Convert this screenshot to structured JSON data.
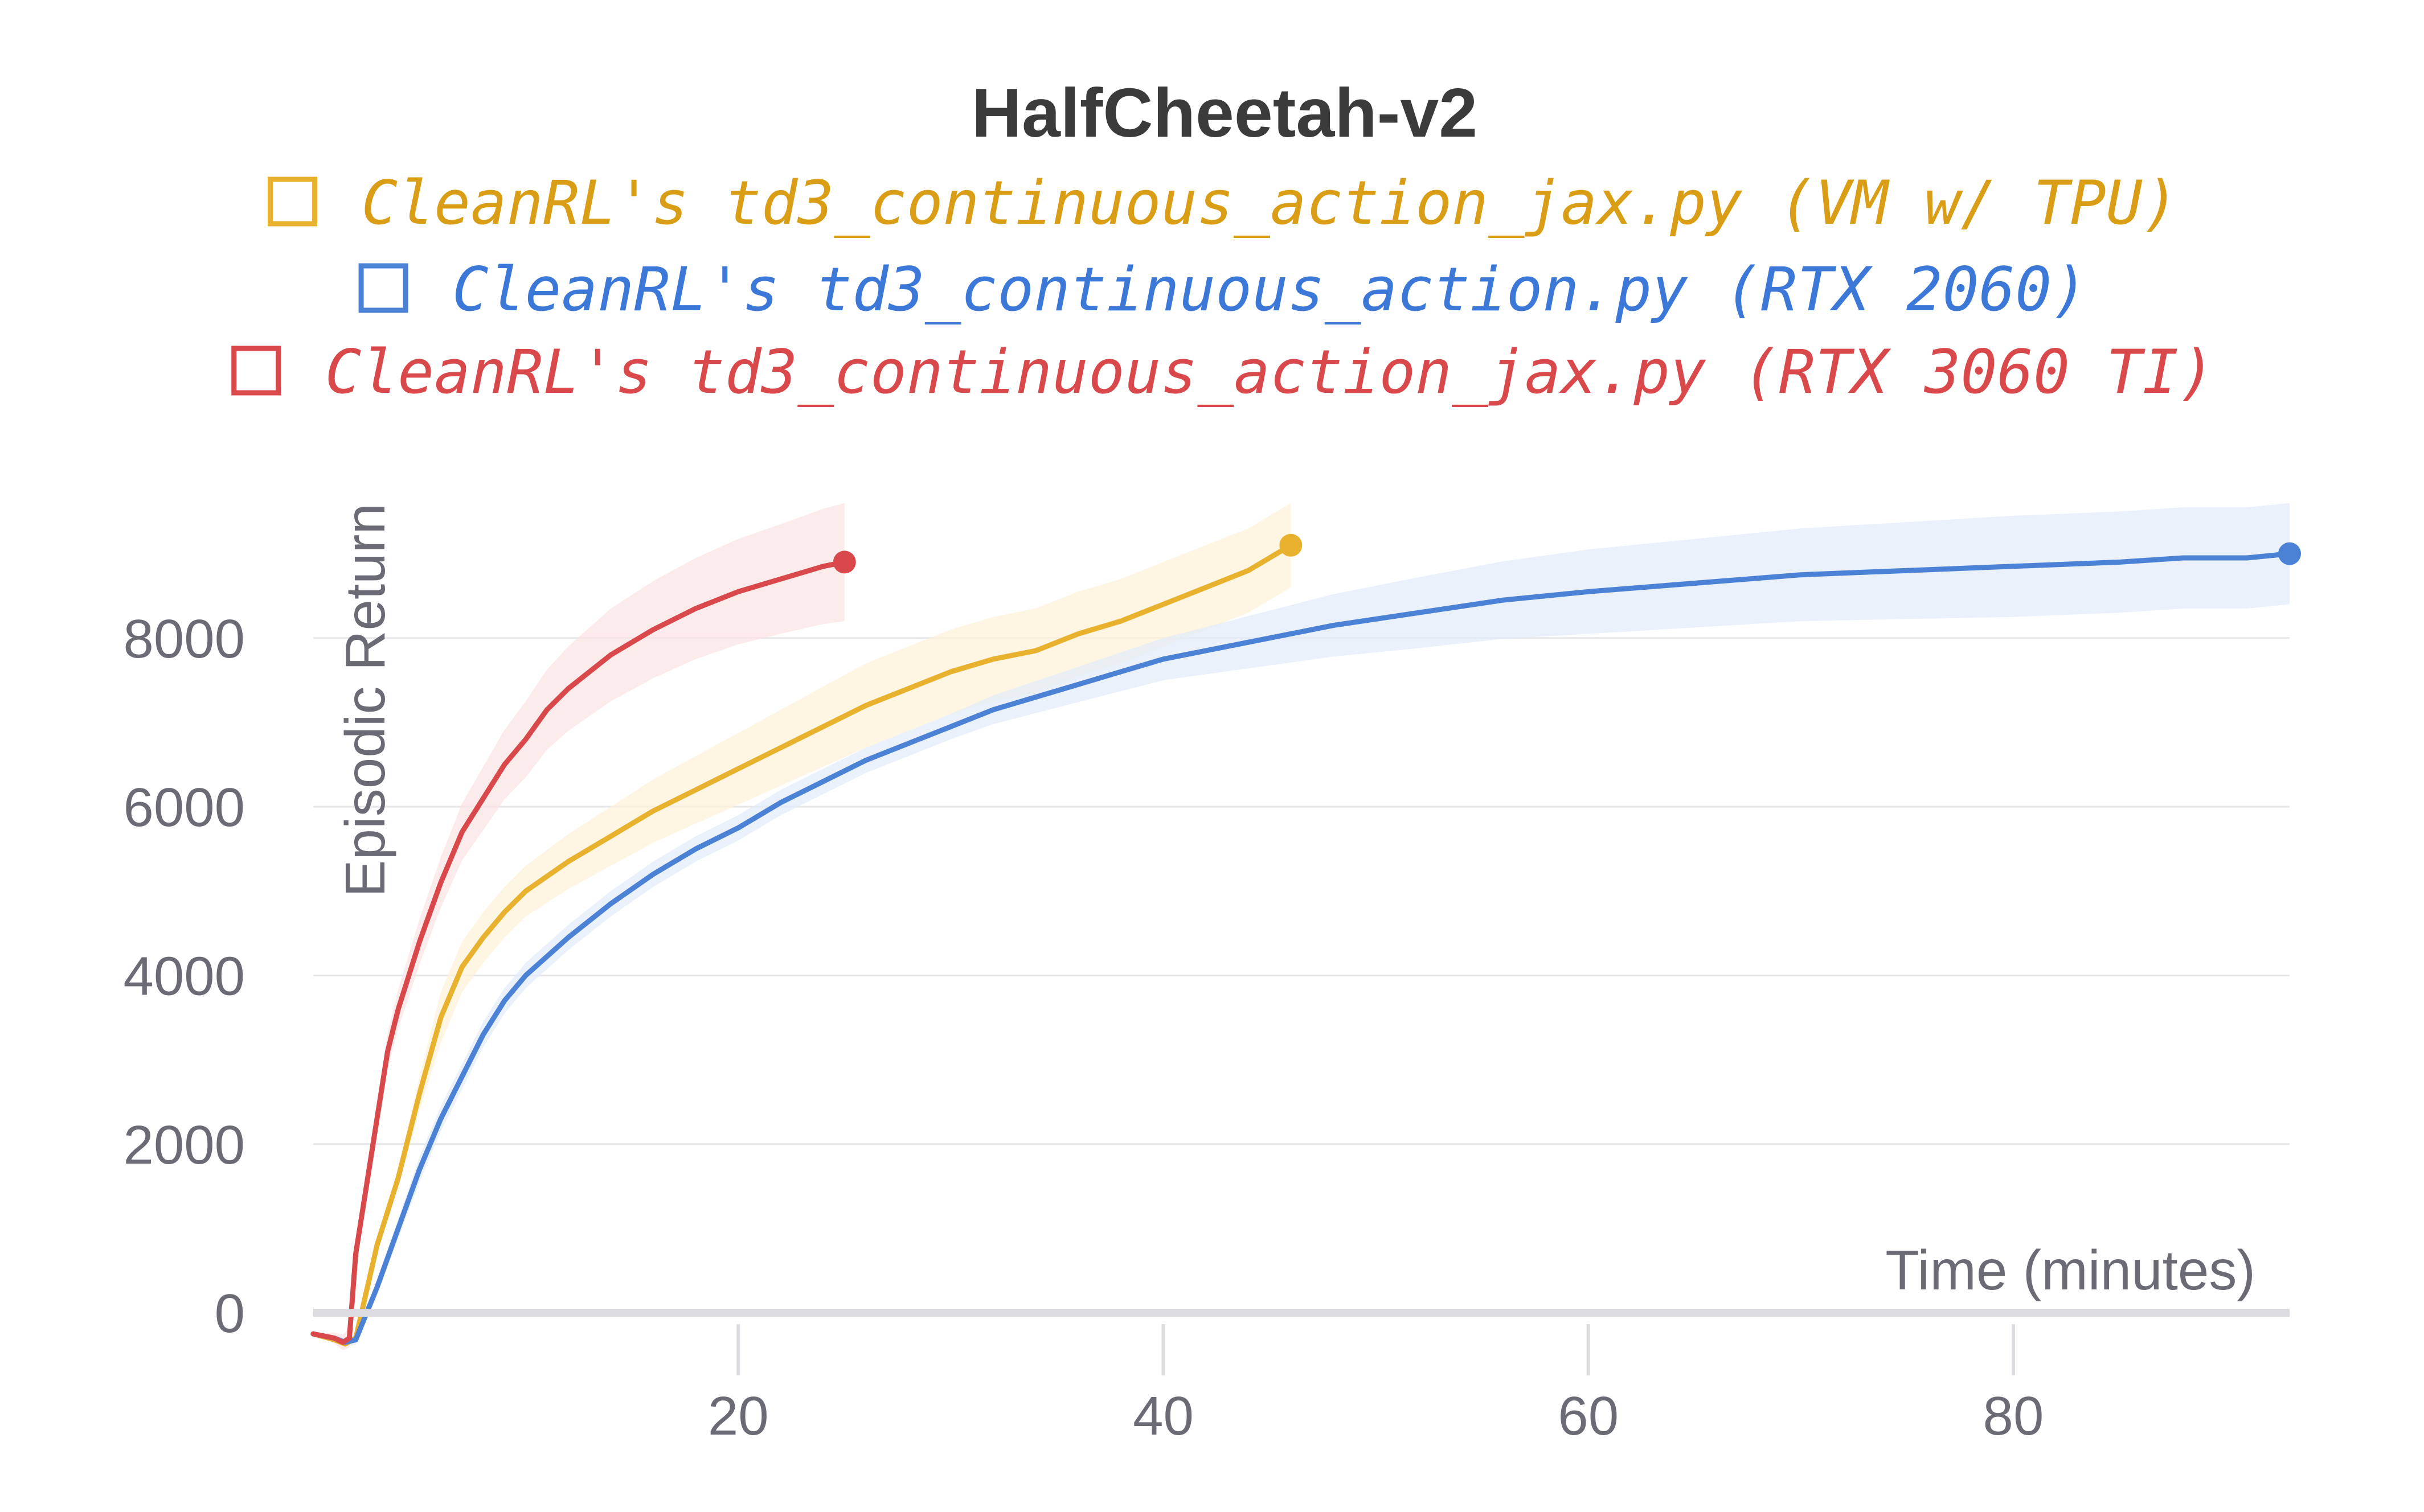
{
  "chart_data": {
    "type": "line",
    "title": "HalfCheetah-v2",
    "xlabel": "Time (minutes)",
    "ylabel": "Episodic Return",
    "xlim": [
      0,
      93
    ],
    "ylim": [
      -600,
      10300
    ],
    "x_ticks": [
      20,
      40,
      60,
      80
    ],
    "y_ticks": [
      0,
      2000,
      4000,
      6000,
      8000
    ],
    "grid": true,
    "legend_position": "top",
    "series": [
      {
        "name": "CleanRL's td3_continuous_action_jax.py (VM w/ TPU)",
        "color": "#e8b22e",
        "legend_text_color": "#d99e16",
        "band_color": "#fdf2d9",
        "points": [
          [
            0,
            -250
          ],
          [
            1,
            -320
          ],
          [
            1.5,
            -370
          ],
          [
            2,
            -300
          ],
          [
            3,
            800
          ],
          [
            4,
            1600
          ],
          [
            5,
            2600
          ],
          [
            6,
            3500
          ],
          [
            7,
            4100
          ],
          [
            8,
            4450
          ],
          [
            9,
            4750
          ],
          [
            10,
            5000
          ],
          [
            12,
            5350
          ],
          [
            14,
            5650
          ],
          [
            16,
            5950
          ],
          [
            18,
            6200
          ],
          [
            20,
            6450
          ],
          [
            22,
            6700
          ],
          [
            24,
            6950
          ],
          [
            26,
            7200
          ],
          [
            28,
            7400
          ],
          [
            30,
            7600
          ],
          [
            32,
            7750
          ],
          [
            34,
            7850
          ],
          [
            36,
            8050
          ],
          [
            38,
            8200
          ],
          [
            40,
            8400
          ],
          [
            42,
            8600
          ],
          [
            44,
            8800
          ],
          [
            46,
            9100
          ]
        ],
        "band": [
          [
            4,
            100
          ],
          [
            6,
            300
          ],
          [
            10,
            300
          ],
          [
            14,
            350
          ],
          [
            18,
            400
          ],
          [
            22,
            450
          ],
          [
            26,
            500
          ],
          [
            30,
            500
          ],
          [
            36,
            500
          ],
          [
            42,
            500
          ],
          [
            46,
            500
          ]
        ]
      },
      {
        "name": "CleanRL's td3_continuous_action.py (RTX 2060)",
        "color": "#4b82d6",
        "legend_text_color": "#3c78d8",
        "band_color": "#e3ecfa",
        "points": [
          [
            0,
            -250
          ],
          [
            1,
            -300
          ],
          [
            1.5,
            -350
          ],
          [
            2,
            -320
          ],
          [
            3,
            300
          ],
          [
            4,
            1000
          ],
          [
            5,
            1700
          ],
          [
            6,
            2300
          ],
          [
            7,
            2800
          ],
          [
            8,
            3300
          ],
          [
            9,
            3700
          ],
          [
            10,
            4000
          ],
          [
            12,
            4450
          ],
          [
            14,
            4850
          ],
          [
            16,
            5200
          ],
          [
            18,
            5500
          ],
          [
            20,
            5750
          ],
          [
            22,
            6050
          ],
          [
            24,
            6300
          ],
          [
            26,
            6550
          ],
          [
            28,
            6750
          ],
          [
            30,
            6950
          ],
          [
            32,
            7150
          ],
          [
            34,
            7300
          ],
          [
            36,
            7450
          ],
          [
            38,
            7600
          ],
          [
            40,
            7750
          ],
          [
            44,
            7950
          ],
          [
            48,
            8150
          ],
          [
            52,
            8300
          ],
          [
            56,
            8450
          ],
          [
            60,
            8550
          ],
          [
            65,
            8650
          ],
          [
            70,
            8750
          ],
          [
            75,
            8800
          ],
          [
            80,
            8850
          ],
          [
            85,
            8900
          ],
          [
            88,
            8950
          ],
          [
            91,
            8950
          ],
          [
            93,
            9000
          ]
        ],
        "band": [
          [
            5,
            150
          ],
          [
            10,
            150
          ],
          [
            20,
            150
          ],
          [
            30,
            150
          ],
          [
            40,
            250
          ],
          [
            50,
            400
          ],
          [
            60,
            500
          ],
          [
            70,
            550
          ],
          [
            80,
            600
          ],
          [
            93,
            600
          ]
        ]
      },
      {
        "name": "CleanRL's td3_continuous_action_jax.py (RTX 3060 TI)",
        "color": "#d9484a",
        "legend_text_color": "#d9484a",
        "band_color": "#fbe4e4",
        "points": [
          [
            0,
            -250
          ],
          [
            1,
            -300
          ],
          [
            1.4,
            -350
          ],
          [
            1.7,
            -300
          ],
          [
            2,
            700
          ],
          [
            2.5,
            1500
          ],
          [
            3,
            2300
          ],
          [
            3.5,
            3100
          ],
          [
            4,
            3600
          ],
          [
            5,
            4400
          ],
          [
            6,
            5100
          ],
          [
            7,
            5700
          ],
          [
            8,
            6100
          ],
          [
            9,
            6500
          ],
          [
            10,
            6800
          ],
          [
            11,
            7150
          ],
          [
            12,
            7400
          ],
          [
            14,
            7800
          ],
          [
            16,
            8100
          ],
          [
            18,
            8350
          ],
          [
            20,
            8550
          ],
          [
            22,
            8700
          ],
          [
            24,
            8850
          ],
          [
            25,
            8900
          ]
        ],
        "band": [
          [
            3,
            200
          ],
          [
            6,
            300
          ],
          [
            10,
            450
          ],
          [
            14,
            550
          ],
          [
            18,
            600
          ],
          [
            22,
            650
          ],
          [
            25,
            700
          ]
        ]
      }
    ]
  }
}
